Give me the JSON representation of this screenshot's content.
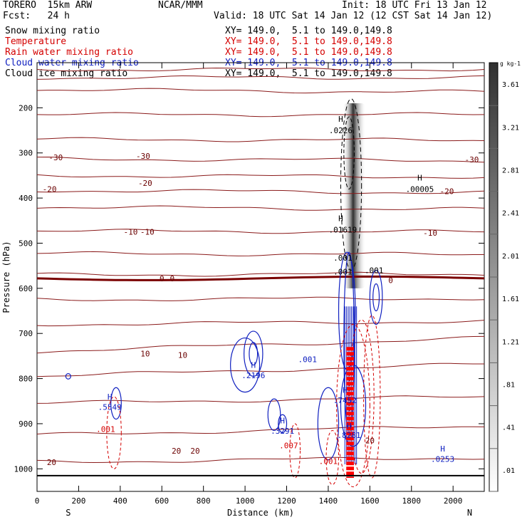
{
  "header": {
    "model": "TORERO  15km ARW",
    "center": "NCAR/MMM",
    "init": "Init: 18 UTC Fri 13 Jan 12",
    "fcst": "Fcst:   24 h",
    "valid": "Valid: 18 UTC Sat 14 Jan 12 (12 CST Sat 14 Jan 12)"
  },
  "fields": [
    {
      "name": "Snow mixing ratio",
      "xy": "XY= 149.0,  5.1 to 149.0,149.8",
      "color": "#000000"
    },
    {
      "name": "Temperature",
      "xy": "XY= 149.0,  5.1 to 149.0,149.8",
      "color": "#d40000"
    },
    {
      "name": "Rain water mixing ratio",
      "xy": "XY= 149.0,  5.1 to 149.0,149.8",
      "color": "#d40000"
    },
    {
      "name": "Cloud water mixing ratio",
      "xy": "XY= 149.0,  5.1 to 149.0,149.8",
      "color": "#1020c0"
    },
    {
      "name": "Cloud ice mixing ratio",
      "xy": "XY= 149.0,  5.1 to 149.0,149.8",
      "color": "#000000"
    }
  ],
  "chart_data": {
    "type": "cross-section",
    "xlabel": "Distance (km)",
    "ylabel": "Pressure (hPa)",
    "xlim": [
      0,
      2150
    ],
    "ylim": [
      1050,
      100
    ],
    "x_ticks": [
      0,
      200,
      400,
      600,
      800,
      1000,
      1200,
      1400,
      1600,
      1800,
      2000
    ],
    "y_ticks": [
      200,
      300,
      400,
      500,
      600,
      700,
      800,
      900,
      1000
    ],
    "end_labels": {
      "left": "S",
      "right": "N"
    },
    "colorbar": {
      "unit": "g kg-1",
      "labels": [
        ".01",
        ".41",
        ".81",
        "1.21",
        "1.61",
        "2.01",
        "2.41",
        "2.81",
        "3.21",
        "3.61"
      ]
    },
    "temperature_contour_labels": [
      {
        "x": 90,
        "p": 310,
        "text": "-30"
      },
      {
        "x": 510,
        "p": 307,
        "text": "-30"
      },
      {
        "x": 2090,
        "p": 315,
        "text": "-30"
      },
      {
        "x": 60,
        "p": 380,
        "text": "-20"
      },
      {
        "x": 520,
        "p": 367,
        "text": "-20"
      },
      {
        "x": 1970,
        "p": 385,
        "text": "-20"
      },
      {
        "x": 450,
        "p": 475,
        "text": "-10"
      },
      {
        "x": 530,
        "p": 475,
        "text": "-10"
      },
      {
        "x": 1890,
        "p": 477,
        "text": "-10"
      },
      {
        "x": 600,
        "p": 578,
        "text": "0"
      },
      {
        "x": 650,
        "p": 578,
        "text": "0"
      },
      {
        "x": 1700,
        "p": 582,
        "text": "0"
      },
      {
        "x": 520,
        "p": 745,
        "text": "10"
      },
      {
        "x": 700,
        "p": 748,
        "text": "10"
      },
      {
        "x": 670,
        "p": 960,
        "text": "20"
      },
      {
        "x": 760,
        "p": 960,
        "text": "20"
      },
      {
        "x": 70,
        "p": 985,
        "text": "20"
      },
      {
        "x": 1600,
        "p": 937,
        "text": "20"
      }
    ],
    "extrema_labels": [
      {
        "x": 1460,
        "p": 250,
        "text": ".0226",
        "color": "#000000"
      },
      {
        "x": 1840,
        "p": 380,
        "text": ".00005",
        "color": "#000000"
      },
      {
        "x": 1470,
        "p": 470,
        "text": ".01619",
        "color": "#000000"
      },
      {
        "x": 350,
        "p": 863,
        "text": ".5549",
        "color": "#1020c0"
      },
      {
        "x": 1040,
        "p": 793,
        "text": ".2196",
        "color": "#1020c0"
      },
      {
        "x": 1180,
        "p": 916,
        "text": ".3291",
        "color": "#1020c0"
      },
      {
        "x": 1480,
        "p": 848,
        "text": ".7452",
        "color": "#1020c0"
      },
      {
        "x": 1500,
        "p": 925,
        "text": ".8281",
        "color": "#1020c0"
      },
      {
        "x": 1950,
        "p": 978,
        "text": ".0253",
        "color": "#1020c0"
      },
      {
        "x": 1470,
        "p": 532,
        "text": ".001",
        "color": "#000000"
      },
      {
        "x": 1620,
        "p": 560,
        "text": ".001",
        "color": "#000000"
      },
      {
        "x": 1470,
        "p": 563,
        "text": ".001",
        "color": "#000000"
      },
      {
        "x": 1300,
        "p": 757,
        "text": ".001",
        "color": "#1020c0"
      },
      {
        "x": 330,
        "p": 912,
        "text": ".001",
        "color": "#d40000"
      },
      {
        "x": 1210,
        "p": 948,
        "text": ".007",
        "color": "#d40000"
      },
      {
        "x": 1400,
        "p": 983,
        "text": ".001",
        "color": "#d40000"
      }
    ],
    "high_markers": [
      {
        "x": 1460,
        "p": 225,
        "color": "#000000"
      },
      {
        "x": 1840,
        "p": 355,
        "color": "#000000"
      },
      {
        "x": 1460,
        "p": 445,
        "color": "#000000"
      },
      {
        "x": 350,
        "p": 840,
        "color": "#1020c0"
      },
      {
        "x": 1040,
        "p": 770,
        "color": "#1020c0"
      },
      {
        "x": 1180,
        "p": 893,
        "color": "#1020c0"
      },
      {
        "x": 1480,
        "p": 825,
        "color": "#1020c0"
      },
      {
        "x": 1500,
        "p": 905,
        "color": "#1020c0"
      },
      {
        "x": 1950,
        "p": 955,
        "color": "#1020c0"
      }
    ],
    "temperature_isotherms": [
      {
        "p_left": 115,
        "p_right": 115
      },
      {
        "p_left": 133,
        "p_right": 133
      },
      {
        "p_left": 160,
        "p_right": 165
      },
      {
        "p_left": 215,
        "p_right": 215
      },
      {
        "p_left": 270,
        "p_right": 272
      },
      {
        "p_left": 313,
        "p_right": 317
      },
      {
        "p_left": 350,
        "p_right": 353
      },
      {
        "p_left": 383,
        "p_right": 388
      },
      {
        "p_left": 420,
        "p_right": 425
      },
      {
        "p_left": 473,
        "p_right": 475
      },
      {
        "p_left": 523,
        "p_right": 525
      },
      {
        "p_left": 570,
        "p_right": 568
      },
      {
        "p_left": 625,
        "p_right": 622
      },
      {
        "p_left": 680,
        "p_right": 673
      },
      {
        "p_left": 740,
        "p_right": 710
      },
      {
        "p_left": 795,
        "p_right": 768
      },
      {
        "p_left": 855,
        "p_right": 840
      },
      {
        "p_left": 925,
        "p_right": 905
      },
      {
        "p_left": 985,
        "p_right": 975
      }
    ],
    "freezing_level_p": 578
  }
}
